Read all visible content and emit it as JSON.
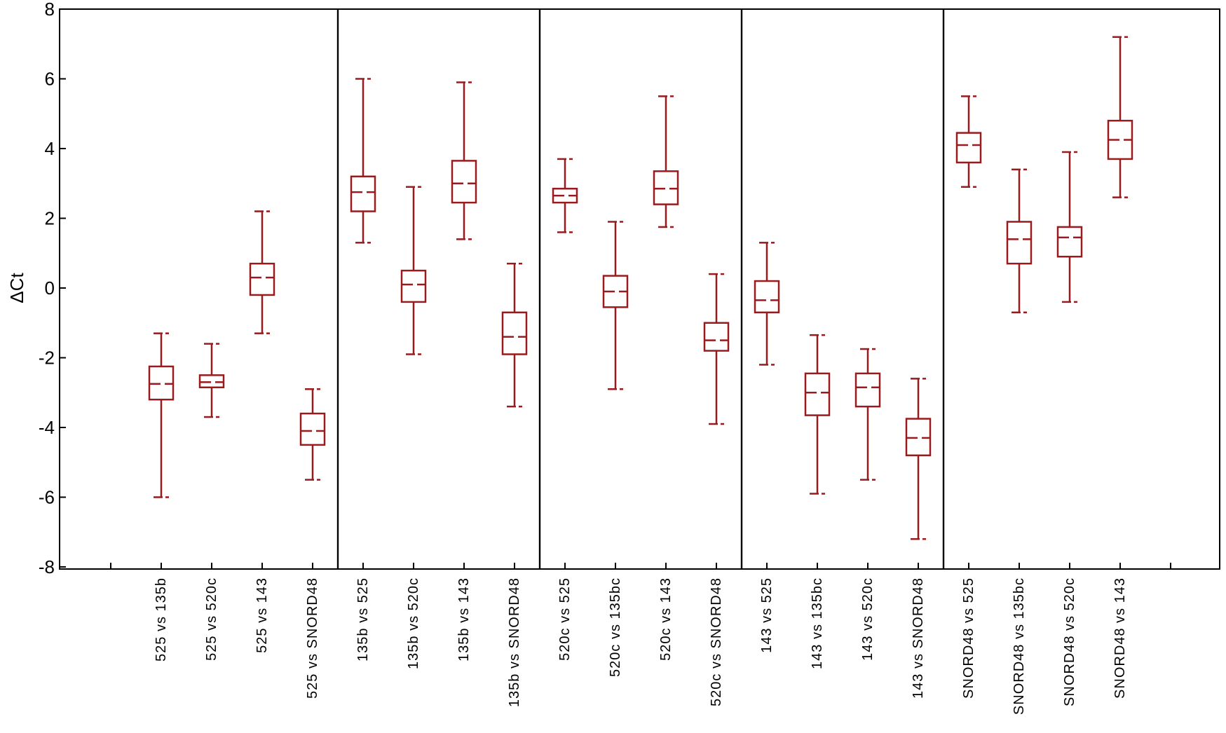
{
  "chart_data": {
    "type": "box",
    "title": "",
    "xlabel": "",
    "ylabel": "ΔCt",
    "ylim": [
      -8,
      8
    ],
    "yticks": [
      8,
      6,
      4,
      2,
      0,
      -2,
      -4,
      -6,
      -8
    ],
    "grid": false,
    "legend": false,
    "box_color": "#9a1b1e",
    "axis_color": "#000000",
    "panels_separated_by_vertical_lines": true,
    "groups": [
      {
        "name": "525",
        "boxes": [
          {
            "label": "525 vs 135b",
            "whisker_low": -6.0,
            "q1": -3.2,
            "median": -2.75,
            "q3": -2.25,
            "whisker_high": -1.3
          },
          {
            "label": "525 vs 520c",
            "whisker_low": -3.7,
            "q1": -2.85,
            "median": -2.7,
            "q3": -2.5,
            "whisker_high": -1.6
          },
          {
            "label": "525 vs 143",
            "whisker_low": -1.3,
            "q1": -0.2,
            "median": 0.3,
            "q3": 0.7,
            "whisker_high": 2.2
          },
          {
            "label": "525 vs SNORD48",
            "whisker_low": -5.5,
            "q1": -4.5,
            "median": -4.1,
            "q3": -3.6,
            "whisker_high": -2.9
          }
        ]
      },
      {
        "name": "135b",
        "boxes": [
          {
            "label": "135b vs 525",
            "whisker_low": 1.3,
            "q1": 2.2,
            "median": 2.75,
            "q3": 3.2,
            "whisker_high": 6.0
          },
          {
            "label": "135b vs 520c",
            "whisker_low": -1.9,
            "q1": -0.4,
            "median": 0.1,
            "q3": 0.5,
            "whisker_high": 2.9
          },
          {
            "label": "135b vs 143",
            "whisker_low": 1.4,
            "q1": 2.45,
            "median": 3.0,
            "q3": 3.65,
            "whisker_high": 5.9
          },
          {
            "label": "135b vs SNORD48",
            "whisker_low": -3.4,
            "q1": -1.9,
            "median": -1.4,
            "q3": -0.7,
            "whisker_high": 0.7
          }
        ]
      },
      {
        "name": "520c",
        "boxes": [
          {
            "label": "520c vs 525",
            "whisker_low": 1.6,
            "q1": 2.45,
            "median": 2.65,
            "q3": 2.85,
            "whisker_high": 3.7
          },
          {
            "label": "520c vs 135bc",
            "whisker_low": -2.9,
            "q1": -0.55,
            "median": -0.1,
            "q3": 0.35,
            "whisker_high": 1.9
          },
          {
            "label": "520c vs 143",
            "whisker_low": 1.75,
            "q1": 2.4,
            "median": 2.85,
            "q3": 3.35,
            "whisker_high": 5.5
          },
          {
            "label": "520c vs SNORD48",
            "whisker_low": -3.9,
            "q1": -1.8,
            "median": -1.5,
            "q3": -1.0,
            "whisker_high": 0.4
          }
        ]
      },
      {
        "name": "143",
        "boxes": [
          {
            "label": "143 vs 525",
            "whisker_low": -2.2,
            "q1": -0.7,
            "median": -0.35,
            "q3": 0.2,
            "whisker_high": 1.3
          },
          {
            "label": "143 vs 135bc",
            "whisker_low": -5.9,
            "q1": -3.65,
            "median": -3.0,
            "q3": -2.45,
            "whisker_high": -1.35
          },
          {
            "label": "143 vs 520c",
            "whisker_low": -5.5,
            "q1": -3.4,
            "median": -2.85,
            "q3": -2.45,
            "whisker_high": -1.75
          },
          {
            "label": "143 vs SNORD48",
            "whisker_low": -7.2,
            "q1": -4.8,
            "median": -4.3,
            "q3": -3.75,
            "whisker_high": -2.6
          }
        ]
      },
      {
        "name": "SNORD48",
        "boxes": [
          {
            "label": "SNORD48 vs 525",
            "whisker_low": 2.9,
            "q1": 3.6,
            "median": 4.1,
            "q3": 4.45,
            "whisker_high": 5.5
          },
          {
            "label": "SNORD48 vs 135bc",
            "whisker_low": -0.7,
            "q1": 0.7,
            "median": 1.4,
            "q3": 1.9,
            "whisker_high": 3.4
          },
          {
            "label": "SNORD48 vs 520c",
            "whisker_low": -0.4,
            "q1": 0.9,
            "median": 1.45,
            "q3": 1.75,
            "whisker_high": 3.9
          },
          {
            "label": "SNORD48 vs 143",
            "whisker_low": 2.6,
            "q1": 3.7,
            "median": 4.25,
            "q3": 4.8,
            "whisker_high": 7.2
          }
        ]
      }
    ]
  }
}
